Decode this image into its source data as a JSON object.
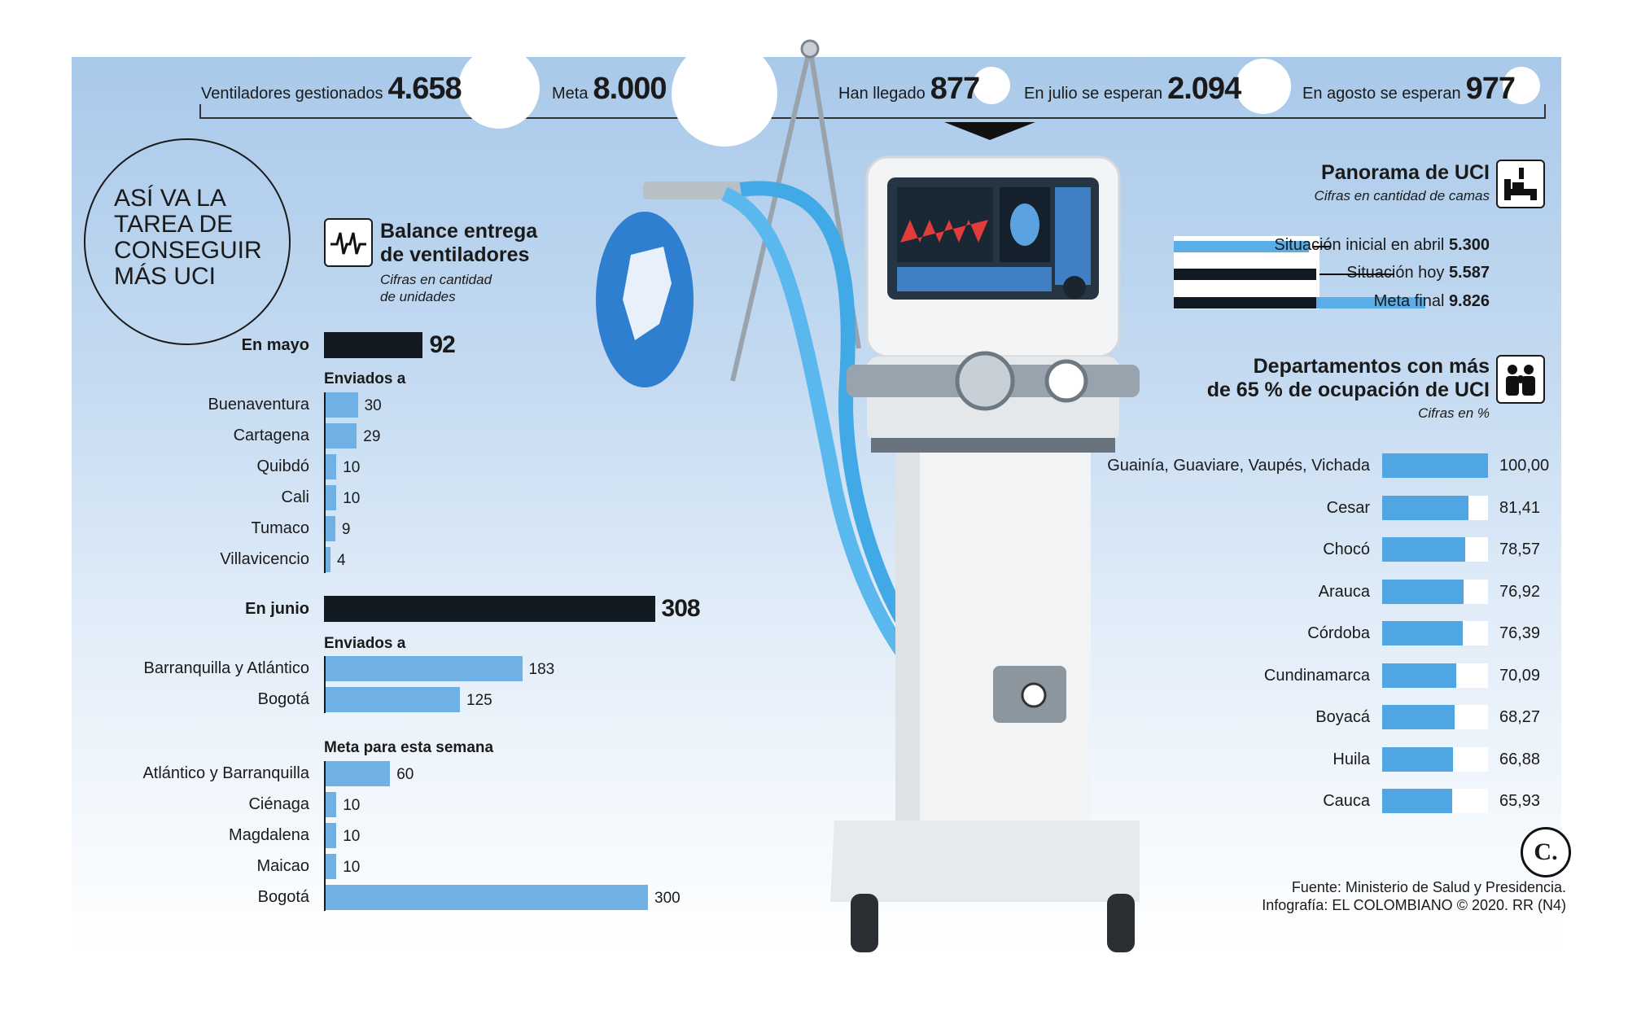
{
  "top_strip": {
    "items": [
      {
        "label": "Ventiladores gestionados",
        "value": "4.658"
      },
      {
        "label": "Meta",
        "value": "8.000"
      },
      {
        "label": "Han llegado",
        "value": "877"
      },
      {
        "label": "En julio se esperan",
        "value": "2.094"
      },
      {
        "label": "En agosto se esperan",
        "value": "977"
      }
    ]
  },
  "circle_title": [
    "ASÍ VA LA",
    "TAREA DE",
    "CONSEGUIR",
    "MÁS UCI"
  ],
  "balance": {
    "title_line1": "Balance entrega",
    "title_line2": "de ventiladores",
    "subtitle_line1": "Cifras en cantidad",
    "subtitle_line2": "de unidades"
  },
  "uci": {
    "title": "Panorama de UCI",
    "subtitle": "Cifras en cantidad de camas"
  },
  "departamentos": {
    "title_line1": "Departamentos con más",
    "title_line2": "de 65 % de ocupación de UCI",
    "subtitle": "Cifras en %"
  },
  "footer": {
    "line1": "Fuente: Ministerio de Salud y Presidencia.",
    "line2": "Infografía: EL COLOMBIANO © 2020. RR (N4)",
    "logo": "C."
  },
  "colors": {
    "bar_blue": "#6fb1e4",
    "bar_dark": "#121a22",
    "occ_blue": "#4fa6e2",
    "panel_top": "#a9c9ea"
  },
  "chart_data": [
    {
      "type": "bar",
      "orientation": "horizontal",
      "sections": [
        {
          "label": "En mayo",
          "total": 92,
          "subhead": "Enviados a",
          "categories": [
            "Buenaventura",
            "Cartagena",
            "Quibdó",
            "Cali",
            "Tumaco",
            "Villavicencio"
          ],
          "values": [
            30,
            29,
            10,
            10,
            9,
            4
          ]
        },
        {
          "label": "En junio",
          "total": 308,
          "subhead": "Enviados a",
          "categories": [
            "Barranquilla y Atlántico",
            "Bogotá"
          ],
          "values": [
            183,
            125
          ]
        },
        {
          "label": "",
          "total": null,
          "subhead": "Meta para esta semana",
          "categories": [
            "Atlántico y Barranquilla",
            "Ciénaga",
            "Magdalena",
            "Maicao",
            "Bogotá"
          ],
          "values": [
            60,
            10,
            10,
            10,
            300
          ]
        }
      ]
    },
    {
      "type": "bar",
      "orientation": "horizontal",
      "categories": [
        "Situación inicial en abril",
        "Situación hoy",
        "Meta final"
      ],
      "values": [
        5300,
        5587,
        9826
      ],
      "value_labels": [
        "5.300",
        "5.587",
        "9.826"
      ]
    },
    {
      "type": "bar",
      "orientation": "horizontal",
      "categories": [
        "Guainía, Guaviare, Vaupés, Vichada",
        "Cesar",
        "Chocó",
        "Arauca",
        "Córdoba",
        "Cundinamarca",
        "Boyacá",
        "Huila",
        "Cauca"
      ],
      "values": [
        100.0,
        81.41,
        78.57,
        76.92,
        76.39,
        70.09,
        68.27,
        66.88,
        65.93
      ],
      "value_labels": [
        "100,00",
        "81,41",
        "78,57",
        "76,92",
        "76,39",
        "70,09",
        "68,27",
        "66,88",
        "65,93"
      ],
      "xlim": [
        0,
        100
      ]
    }
  ]
}
